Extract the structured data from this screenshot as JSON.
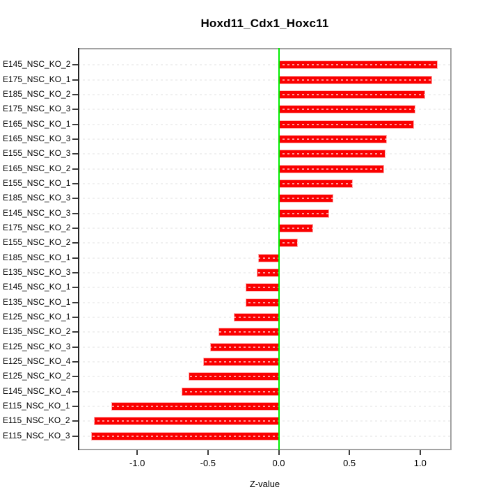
{
  "title": "Hoxd11_Cdx1_Hoxc11",
  "chart_data": {
    "type": "bar",
    "orientation": "horizontal",
    "title": "Hoxd11_Cdx1_Hoxc11",
    "xlabel": "Z-value",
    "ylabel": "",
    "xlim": [
      -1.42,
      1.22
    ],
    "xticks": [
      -1.0,
      -0.5,
      0.0,
      0.5,
      1.0
    ],
    "grid": true,
    "legend": "none",
    "bar_color": "#ff0000",
    "zero_line_color": "#00ee00",
    "grid_color": "#d9d9d9",
    "categories": [
      "E145_NSC_KO_2",
      "E175_NSC_KO_1",
      "E185_NSC_KO_2",
      "E175_NSC_KO_3",
      "E165_NSC_KO_1",
      "E165_NSC_KO_3",
      "E155_NSC_KO_3",
      "E165_NSC_KO_2",
      "E155_NSC_KO_1",
      "E185_NSC_KO_3",
      "E145_NSC_KO_3",
      "E175_NSC_KO_2",
      "E155_NSC_KO_2",
      "E185_NSC_KO_1",
      "E135_NSC_KO_3",
      "E145_NSC_KO_1",
      "E135_NSC_KO_1",
      "E125_NSC_KO_1",
      "E135_NSC_KO_2",
      "E125_NSC_KO_3",
      "E125_NSC_KO_4",
      "E125_NSC_KO_2",
      "E145_NSC_KO_4",
      "E115_NSC_KO_1",
      "E115_NSC_KO_2",
      "E115_NSC_KO_3"
    ],
    "values": [
      1.12,
      1.08,
      1.03,
      0.96,
      0.95,
      0.76,
      0.75,
      0.74,
      0.52,
      0.38,
      0.35,
      0.24,
      0.13,
      -0.14,
      -0.15,
      -0.23,
      -0.23,
      -0.31,
      -0.42,
      -0.48,
      -0.53,
      -0.63,
      -0.68,
      -1.18,
      -1.3,
      -1.32
    ]
  }
}
